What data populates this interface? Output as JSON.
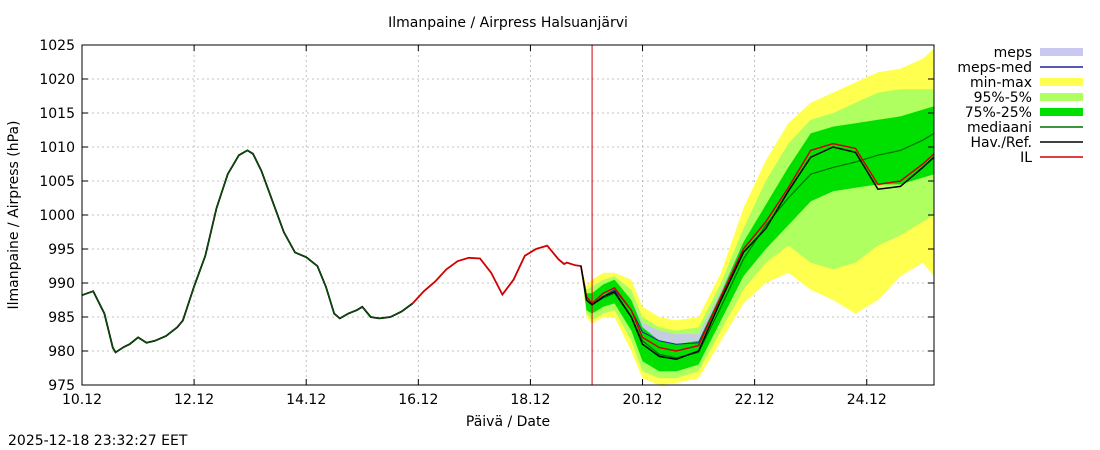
{
  "chart_data": {
    "type": "line",
    "title": "Ilmanpaine / Airpress Halsuanjärvi",
    "xlabel": "Päivä / Date",
    "ylabel": "Ilmanpaine / Airpress (hPa)",
    "footer": "2025-12-18 23:32:27 EET",
    "xlim": [
      0,
      15.2
    ],
    "ylim": [
      975,
      1025
    ],
    "grid": true,
    "legend_position": "top-right outside",
    "x_unit": "days since 10.12 00:00",
    "xticks": [
      {
        "x": 0,
        "label": "10.12"
      },
      {
        "x": 2,
        "label": "12.12"
      },
      {
        "x": 4,
        "label": "14.12"
      },
      {
        "x": 6,
        "label": "16.12"
      },
      {
        "x": 8,
        "label": "18.12"
      },
      {
        "x": 10,
        "label": "20.12"
      },
      {
        "x": 12,
        "label": "22.12"
      },
      {
        "x": 14,
        "label": "24.12"
      }
    ],
    "yticks": [
      975,
      980,
      985,
      990,
      995,
      1000,
      1005,
      1010,
      1015,
      1020,
      1025
    ],
    "forecast_start": 9.1,
    "colors": {
      "meps": "#c8c8f0",
      "meps_med": "#2020a0",
      "minmax": "#ffff50",
      "p95_5": "#b0ff60",
      "p75_25": "#00e000",
      "mediaani": "#007000",
      "observed": "#000000",
      "il": "#d00000",
      "grid": "#b0b0b0",
      "forecast_line": "#d00000"
    },
    "legend": [
      {
        "key": "meps",
        "label": "meps",
        "style": "band"
      },
      {
        "key": "meps_med",
        "label": "meps-med",
        "style": "line"
      },
      {
        "key": "minmax",
        "label": "min-max",
        "style": "band"
      },
      {
        "key": "p95_5",
        "label": "95%-5%",
        "style": "band"
      },
      {
        "key": "p75_25",
        "label": "75%-25%",
        "style": "band"
      },
      {
        "key": "mediaani",
        "label": "mediaani",
        "style": "line"
      },
      {
        "key": "observed",
        "label": "Hav./Ref.",
        "style": "line"
      },
      {
        "key": "il",
        "label": "IL",
        "style": "line"
      }
    ],
    "series": {
      "observed_hist": {
        "x": [
          0,
          0.2,
          0.4,
          0.55,
          0.6,
          0.75,
          0.85,
          1.0,
          1.15,
          1.3,
          1.5,
          1.7,
          1.8,
          2.0,
          2.2,
          2.4,
          2.6,
          2.8,
          2.95,
          3.05,
          3.2,
          3.4,
          3.6,
          3.8,
          4.0,
          4.2,
          4.35,
          4.5,
          4.6,
          4.75,
          4.9,
          5.0,
          5.15,
          5.3,
          5.5,
          5.7,
          5.9
        ],
        "y": [
          988.2,
          988.8,
          985.5,
          980.5,
          979.8,
          980.6,
          981.0,
          982.0,
          981.2,
          981.5,
          982.2,
          983.5,
          984.5,
          989.5,
          994.0,
          1001.0,
          1006.0,
          1008.8,
          1009.5,
          1009.0,
          1006.5,
          1002.0,
          997.5,
          994.5,
          993.8,
          992.5,
          989.5,
          985.5,
          984.8,
          985.5,
          986.0,
          986.5,
          985.0,
          984.8,
          985.0,
          985.8,
          987.0
        ]
      },
      "il_hist": {
        "x": [
          5.9,
          6.1,
          6.3,
          6.5,
          6.7,
          6.9,
          7.1,
          7.3,
          7.5,
          7.7,
          7.9,
          8.1,
          8.3,
          8.5,
          8.6,
          8.65,
          8.8,
          8.9
        ],
        "y": [
          987.0,
          988.8,
          990.2,
          992.0,
          993.2,
          993.7,
          993.6,
          991.5,
          988.3,
          990.5,
          994.0,
          995.0,
          995.5,
          993.5,
          992.8,
          993.0,
          992.6,
          992.5
        ]
      },
      "fc_x": [
        8.9,
        9.0,
        9.1,
        9.3,
        9.5,
        9.8,
        10.0,
        10.3,
        10.6,
        11.0,
        11.4,
        11.8,
        12.2,
        12.6,
        13.0,
        13.4,
        13.8,
        14.2,
        14.6,
        15.0,
        15.2
      ],
      "il_fc": [
        992.6,
        988.0,
        987.0,
        988.5,
        989.3,
        986.0,
        982.0,
        980.5,
        980.0,
        980.8,
        988.0,
        995.0,
        999.0,
        1004.0,
        1009.5,
        1010.5,
        1009.8,
        1004.5,
        1005.0,
        1007.5,
        1009.0
      ],
      "observed_fc": [
        992.5,
        987.5,
        986.8,
        988.0,
        988.7,
        985.0,
        981.0,
        979.2,
        978.8,
        980.0,
        987.5,
        994.5,
        998.0,
        1003.5,
        1008.5,
        1010.0,
        1009.2,
        1003.8,
        1004.2,
        1007.0,
        1008.5
      ],
      "mediaani": [
        992.5,
        987.5,
        986.8,
        987.8,
        988.5,
        985.0,
        981.5,
        979.5,
        979.0,
        979.8,
        986.5,
        993.5,
        998.5,
        1002.5,
        1006.0,
        1007.0,
        1007.8,
        1008.8,
        1009.5,
        1011.0,
        1012.0
      ],
      "meps_med": [
        992.5,
        987.5,
        986.8,
        988.0,
        989.0,
        986.0,
        982.8,
        981.5,
        981.0,
        981.2,
        988.0,
        995.0
      ],
      "meps_lo": [
        992.5,
        987.2,
        986.3,
        987.5,
        988.0,
        984.5,
        981.0,
        979.5,
        979.0,
        979.5,
        985.5,
        992.0
      ],
      "meps_hi": [
        992.5,
        988.0,
        987.8,
        989.0,
        990.0,
        987.5,
        984.2,
        983.0,
        982.5,
        982.5,
        989.0,
        996.0
      ],
      "p75_lo": [
        992.5,
        986.0,
        985.5,
        986.5,
        987.0,
        983.0,
        978.5,
        977.0,
        977.0,
        978.0,
        984.5,
        991.0,
        995.0,
        998.5,
        1002.0,
        1003.5,
        1004.0,
        1004.5,
        1004.5,
        1005.5,
        1006.0
      ],
      "p75_hi": [
        992.5,
        988.5,
        988.5,
        989.8,
        990.5,
        987.5,
        983.5,
        981.5,
        981.0,
        981.5,
        988.5,
        996.0,
        1001.5,
        1007.0,
        1012.0,
        1013.0,
        1013.5,
        1014.0,
        1014.5,
        1015.5,
        1016.0
      ],
      "p95_lo": [
        992.5,
        985.5,
        984.5,
        985.5,
        986.0,
        981.5,
        977.0,
        976.0,
        976.0,
        977.0,
        983.0,
        989.0,
        993.0,
        995.5,
        993.0,
        992.0,
        993.0,
        995.5,
        997.0,
        999.0,
        1000.0
      ],
      "p95_hi": [
        992.5,
        989.0,
        989.5,
        990.5,
        991.0,
        989.0,
        985.0,
        983.5,
        983.0,
        983.5,
        990.0,
        998.0,
        1005.0,
        1010.5,
        1014.0,
        1015.0,
        1016.5,
        1018.0,
        1018.5,
        1018.5,
        1018.5
      ],
      "mm_lo": [
        992.5,
        985.0,
        984.0,
        985.0,
        985.0,
        980.0,
        976.0,
        975.0,
        975.3,
        976.0,
        981.5,
        987.0,
        990.0,
        991.5,
        989.0,
        987.5,
        985.5,
        987.5,
        991.0,
        993.0,
        991.0
      ],
      "mm_hi": [
        992.5,
        989.5,
        990.5,
        991.5,
        991.5,
        990.5,
        986.5,
        985.0,
        984.5,
        985.0,
        991.5,
        1001.0,
        1008.0,
        1013.5,
        1016.5,
        1018.0,
        1019.5,
        1021.0,
        1021.5,
        1023.0,
        1024.5
      ]
    }
  }
}
